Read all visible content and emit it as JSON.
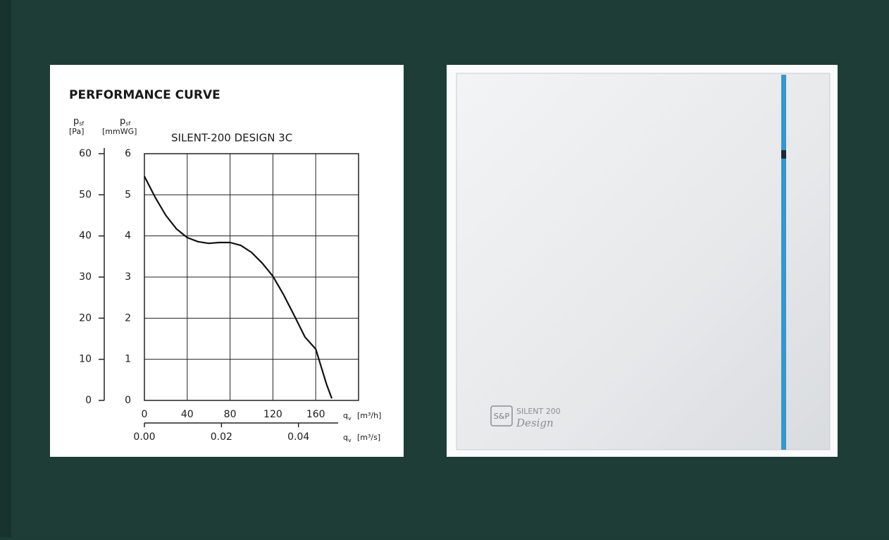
{
  "chart_data": {
    "type": "line",
    "title": "PERFORMANCE CURVE",
    "subtitle": "SILENT-200 DESIGN 3C",
    "y_label": {
      "symbol": "p",
      "sub": "sf",
      "unit": "[Pa]"
    },
    "y2_label": {
      "symbol": "p",
      "sub": "sf",
      "unit": "[mmWG]"
    },
    "x_label": {
      "symbol": "q",
      "sub": "v",
      "unit": "[m³/h]"
    },
    "x2_label": {
      "symbol": "q",
      "sub": "v",
      "unit": "[m³/s]"
    },
    "x": [
      0,
      10,
      20,
      30,
      40,
      50,
      60,
      70,
      80,
      90,
      100,
      110,
      120,
      130,
      140,
      150,
      160,
      170,
      175
    ],
    "values": [
      54.5,
      49.4,
      45,
      41.7,
      39.6,
      38.6,
      38.2,
      38.4,
      38.4,
      37.7,
      36,
      33.4,
      30.2,
      25.7,
      20.6,
      15.4,
      12.5,
      4,
      0.5
    ],
    "color": "#111111",
    "xlim": [
      0,
      200
    ],
    "xticks": [
      0,
      40,
      80,
      120,
      160
    ],
    "x2lim": [
      0,
      0.0556
    ],
    "x2ticks": [
      {
        "value": 0,
        "label": "0.00"
      },
      0.02,
      0.04
    ],
    "ylim": [
      0,
      60
    ],
    "yticks": [
      0,
      10,
      20,
      30,
      40,
      50,
      60
    ],
    "y2lim": [
      0,
      6
    ],
    "y2ticks": [
      0,
      1,
      2,
      3,
      4,
      5,
      6
    ],
    "grid": true
  },
  "product": {
    "model": "SILENT 200",
    "line": "Design"
  }
}
